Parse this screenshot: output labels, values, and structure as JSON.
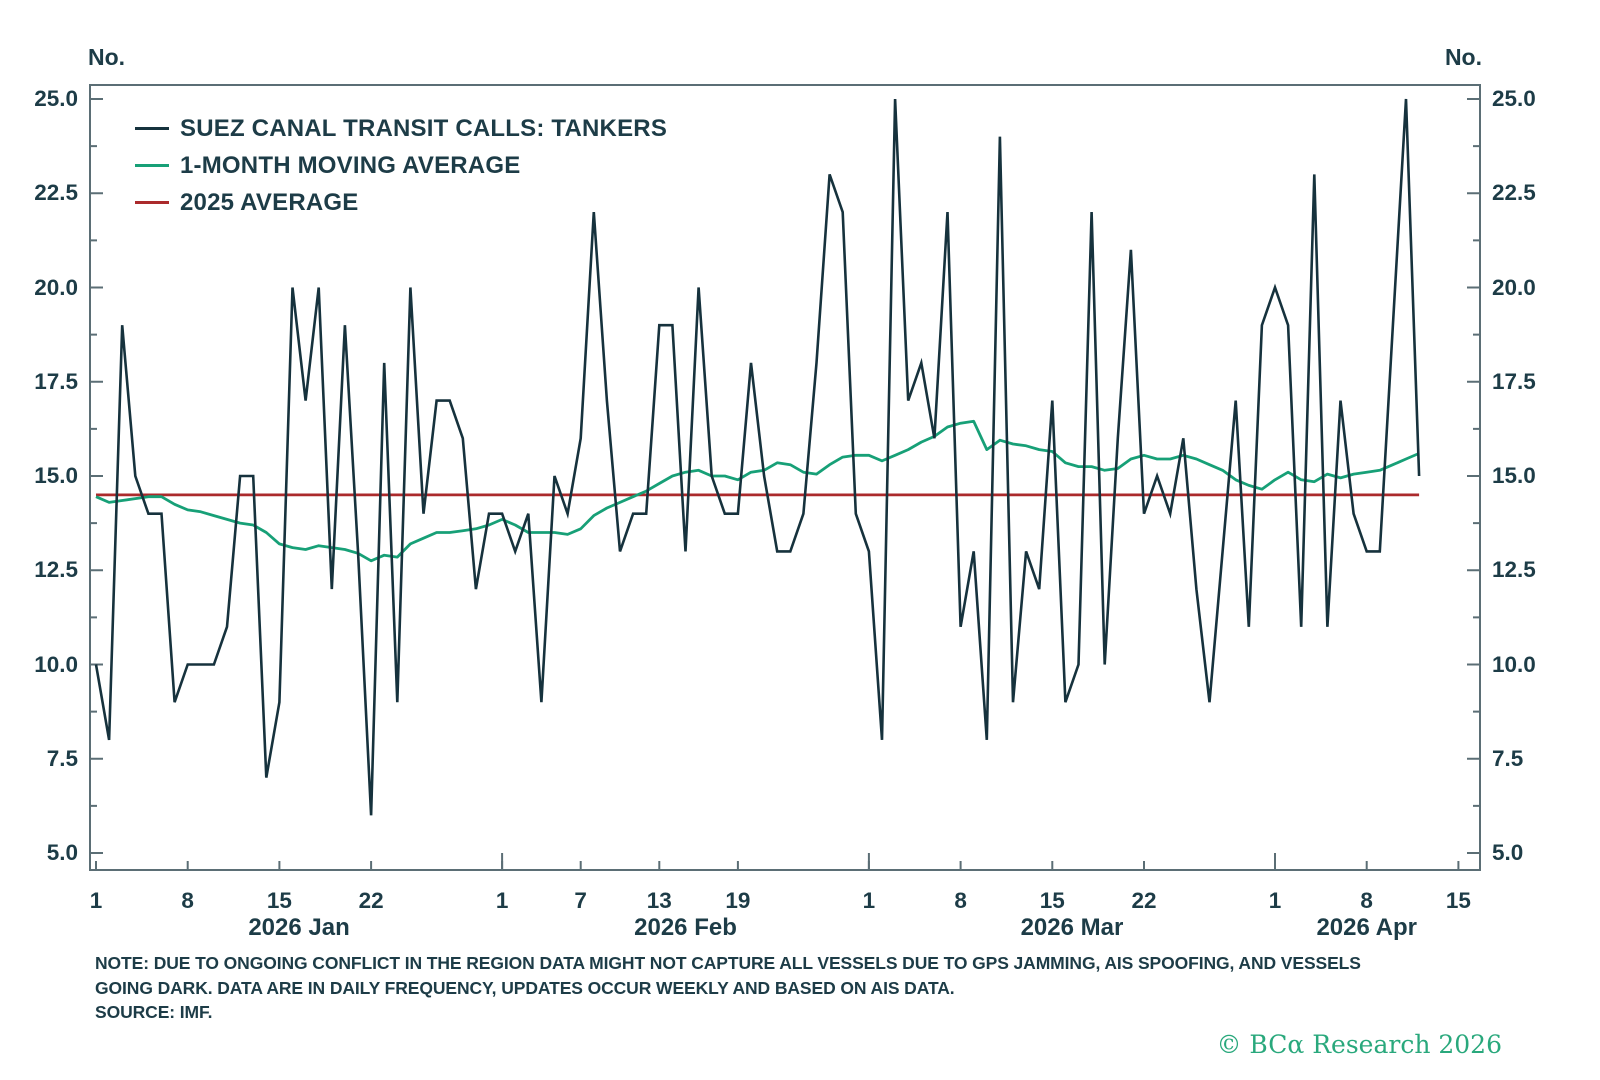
{
  "page": {
    "unit_label_left": "No.",
    "unit_label_right": "No."
  },
  "chart_data": {
    "type": "line",
    "title": "",
    "frequency": "daily",
    "start_label": "2026 Jan 1",
    "end_label": "2026 Apr 12",
    "ylim": [
      5.0,
      25.0
    ],
    "grid": false,
    "legend_position": "top-left",
    "axis_color": "#5b6e75",
    "text_color": "#1d3c47",
    "y_ticks": [
      "5.0",
      "7.5",
      "10.0",
      "12.5",
      "15.0",
      "17.5",
      "20.0",
      "22.5",
      "25.0"
    ],
    "y_tick_values": [
      5.0,
      7.5,
      10.0,
      12.5,
      15.0,
      17.5,
      20.0,
      22.5,
      25.0
    ],
    "x_ticks": [
      {
        "label": "1",
        "day": 0
      },
      {
        "label": "8",
        "day": 7
      },
      {
        "label": "15",
        "day": 14
      },
      {
        "label": "22",
        "day": 21
      },
      {
        "label": "1",
        "day": 31
      },
      {
        "label": "7",
        "day": 37
      },
      {
        "label": "13",
        "day": 43
      },
      {
        "label": "19",
        "day": 49
      },
      {
        "label": "1",
        "day": 59
      },
      {
        "label": "8",
        "day": 66
      },
      {
        "label": "15",
        "day": 73
      },
      {
        "label": "22",
        "day": 80
      },
      {
        "label": "1",
        "day": 90
      },
      {
        "label": "8",
        "day": 97
      },
      {
        "label": "15",
        "day": 104
      }
    ],
    "month_start_days": [
      31,
      59,
      90
    ],
    "month_labels": [
      {
        "label": "2026 Jan",
        "start_day": 0,
        "end_day": 31
      },
      {
        "label": "2026 Feb",
        "start_day": 31,
        "end_day": 59
      },
      {
        "label": "2026 Mar",
        "start_day": 59,
        "end_day": 90
      },
      {
        "label": "2026 Apr",
        "start_day": 90,
        "end_day": 104
      }
    ],
    "series": [
      {
        "name": "SUEZ CANAL TRANSIT CALLS: TANKERS",
        "color": "#16323d",
        "values": [
          10,
          8,
          19,
          15,
          14,
          14,
          9,
          10,
          10,
          10,
          11,
          15,
          15,
          7,
          9,
          20,
          17,
          20,
          12,
          19,
          13,
          6,
          18,
          9,
          20,
          14,
          17,
          17,
          16,
          12,
          14,
          14,
          13,
          14,
          9,
          15,
          14,
          16,
          22,
          17,
          13,
          14,
          14,
          19,
          19,
          13,
          20,
          15,
          14,
          14,
          18,
          15,
          13,
          13,
          14,
          18,
          23,
          22,
          14,
          13,
          8,
          25,
          17,
          18,
          16,
          22,
          11,
          13,
          8,
          24,
          9,
          13,
          12,
          17,
          9,
          10,
          22,
          10,
          16,
          21,
          14,
          15,
          14,
          16,
          12,
          9,
          13,
          17,
          11,
          19,
          20,
          19,
          11,
          23,
          11,
          17,
          14,
          13,
          13,
          19,
          25,
          15
        ]
      },
      {
        "name": "1-MONTH MOVING AVERAGE",
        "color": "#17a077",
        "values": [
          14.45,
          14.3,
          14.35,
          14.4,
          14.45,
          14.45,
          14.25,
          14.1,
          14.05,
          13.95,
          13.85,
          13.75,
          13.7,
          13.5,
          13.2,
          13.1,
          13.05,
          13.15,
          13.1,
          13.05,
          12.95,
          12.75,
          12.9,
          12.85,
          13.2,
          13.35,
          13.5,
          13.5,
          13.55,
          13.6,
          13.7,
          13.85,
          13.7,
          13.5,
          13.5,
          13.5,
          13.45,
          13.6,
          13.95,
          14.15,
          14.3,
          14.45,
          14.6,
          14.8,
          15.0,
          15.1,
          15.15,
          15.0,
          15.0,
          14.9,
          15.1,
          15.15,
          15.35,
          15.3,
          15.1,
          15.05,
          15.3,
          15.5,
          15.55,
          15.55,
          15.4,
          15.55,
          15.7,
          15.9,
          16.05,
          16.3,
          16.4,
          16.45,
          15.7,
          15.95,
          15.85,
          15.8,
          15.7,
          15.65,
          15.35,
          15.25,
          15.25,
          15.15,
          15.2,
          15.45,
          15.55,
          15.45,
          15.45,
          15.55,
          15.45,
          15.3,
          15.15,
          14.9,
          14.75,
          14.65,
          14.9,
          15.1,
          14.9,
          14.85,
          15.05,
          14.95,
          15.05,
          15.1,
          15.15,
          15.3,
          15.45,
          15.6
        ]
      },
      {
        "name": "2025 AVERAGE",
        "color": "#ab2a2c",
        "constant": true,
        "value": 14.5
      }
    ]
  },
  "notes": {
    "line1": "NOTE: DUE TO ONGOING CONFLICT IN THE REGION DATA MIGHT NOT CAPTURE ALL VESSELS DUE TO GPS JAMMING, AIS SPOOFING, AND VESSELS",
    "line2": "GOING DARK. DATA ARE IN DAILY FREQUENCY, UPDATES OCCUR WEEKLY AND BASED ON AIS DATA.",
    "line3": "SOURCE: IMF."
  },
  "footer": {
    "copyright": "© BCα Research 2026"
  }
}
